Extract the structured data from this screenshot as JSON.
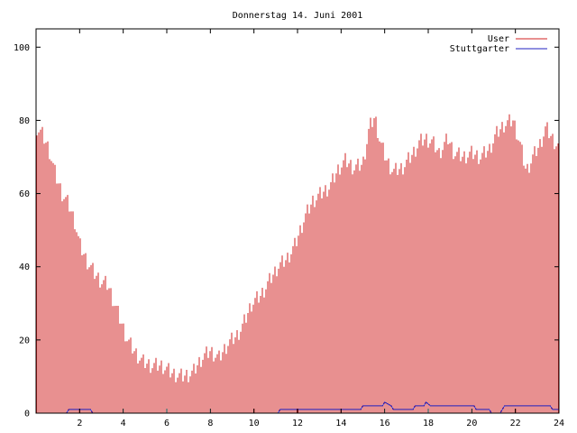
{
  "chart_data": {
    "type": "bar",
    "title": "Donnerstag 14. Juni 2001",
    "xlabel": "",
    "ylabel": "",
    "xlim": [
      0,
      24
    ],
    "ylim": [
      0,
      105
    ],
    "x_ticks": [
      "2",
      "4",
      "6",
      "8",
      "10",
      "12",
      "14",
      "16",
      "18",
      "20",
      "22",
      "24"
    ],
    "y_ticks": [
      "0",
      "20",
      "40",
      "60",
      "80",
      "100"
    ],
    "grid": false,
    "legend_position": "top-right",
    "series": [
      {
        "name": "User",
        "color": "#d02020",
        "style": "impulses",
        "anchors": [
          [
            0.05,
            78
          ],
          [
            0.3,
            76
          ],
          [
            0.6,
            72
          ],
          [
            0.9,
            65
          ],
          [
            1.2,
            60
          ],
          [
            1.5,
            57
          ],
          [
            1.8,
            52
          ],
          [
            2.0,
            46
          ],
          [
            2.3,
            42
          ],
          [
            2.7,
            38
          ],
          [
            3.0,
            36
          ],
          [
            3.3,
            35
          ],
          [
            3.6,
            30
          ],
          [
            3.9,
            25
          ],
          [
            4.2,
            20
          ],
          [
            4.5,
            17
          ],
          [
            4.9,
            14
          ],
          [
            5.3,
            13
          ],
          [
            5.8,
            13
          ],
          [
            6.2,
            11
          ],
          [
            6.7,
            10
          ],
          [
            7.2,
            11
          ],
          [
            7.6,
            15
          ],
          [
            8.0,
            17
          ],
          [
            8.4,
            15
          ],
          [
            8.8,
            19
          ],
          [
            9.2,
            21
          ],
          [
            9.5,
            24
          ],
          [
            9.9,
            30
          ],
          [
            10.3,
            32
          ],
          [
            10.7,
            36
          ],
          [
            11.1,
            40
          ],
          [
            11.5,
            42
          ],
          [
            11.9,
            46
          ],
          [
            12.3,
            53
          ],
          [
            12.7,
            58
          ],
          [
            13.1,
            60
          ],
          [
            13.5,
            62
          ],
          [
            13.9,
            67
          ],
          [
            14.2,
            69
          ],
          [
            14.6,
            67
          ],
          [
            15.0,
            68
          ],
          [
            15.3,
            78
          ],
          [
            15.55,
            81
          ],
          [
            15.8,
            74
          ],
          [
            16.1,
            69
          ],
          [
            16.4,
            66
          ],
          [
            16.8,
            67
          ],
          [
            17.2,
            70
          ],
          [
            17.6,
            74
          ],
          [
            17.9,
            75
          ],
          [
            18.2,
            74
          ],
          [
            18.5,
            71
          ],
          [
            18.9,
            75
          ],
          [
            19.2,
            71
          ],
          [
            19.6,
            70
          ],
          [
            20.0,
            71
          ],
          [
            20.4,
            70
          ],
          [
            20.8,
            72
          ],
          [
            21.1,
            76
          ],
          [
            21.5,
            79
          ],
          [
            21.9,
            80
          ],
          [
            22.2,
            74
          ],
          [
            22.5,
            66
          ],
          [
            22.8,
            70
          ],
          [
            23.1,
            73
          ],
          [
            23.4,
            78
          ],
          [
            23.7,
            75
          ],
          [
            23.95,
            73
          ]
        ]
      },
      {
        "name": "Stuttgarter",
        "color": "#2020c0",
        "style": "lines",
        "points": [
          [
            0,
            0
          ],
          [
            1.4,
            0
          ],
          [
            1.5,
            1
          ],
          [
            2.5,
            1
          ],
          [
            2.6,
            0
          ],
          [
            11.1,
            0
          ],
          [
            11.2,
            1
          ],
          [
            14.9,
            1
          ],
          [
            15.0,
            2
          ],
          [
            15.9,
            2
          ],
          [
            16.0,
            3
          ],
          [
            16.3,
            2
          ],
          [
            16.4,
            1
          ],
          [
            17.3,
            1
          ],
          [
            17.4,
            2
          ],
          [
            17.8,
            2
          ],
          [
            17.9,
            3
          ],
          [
            18.1,
            2
          ],
          [
            20.1,
            2
          ],
          [
            20.2,
            1
          ],
          [
            20.8,
            1
          ],
          [
            20.9,
            0
          ],
          [
            21.3,
            0
          ],
          [
            21.4,
            1
          ],
          [
            21.5,
            2
          ],
          [
            23.6,
            2
          ],
          [
            23.7,
            1
          ],
          [
            24,
            1
          ]
        ]
      }
    ]
  }
}
